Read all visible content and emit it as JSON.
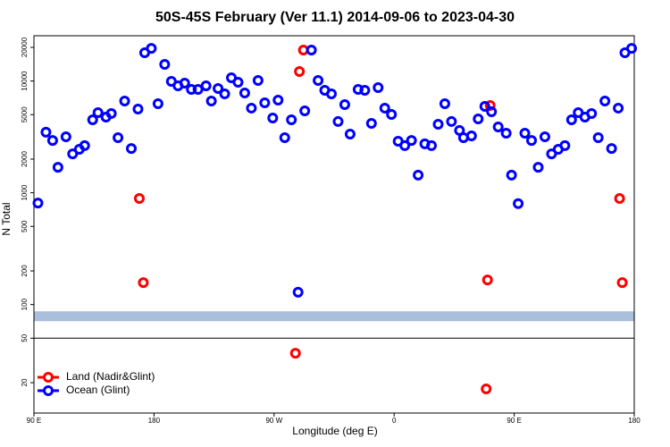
{
  "chart_data": {
    "type": "scatter",
    "title": "50S-45S February (Ver 11.1)   2014-09-06 to 2023-04-30",
    "x_label": "Longitude (deg E)",
    "y_label": "N Total",
    "log_y": true,
    "legend": "lower left",
    "xlim": [
      90,
      540
    ],
    "xticks": [
      {
        "value": 90,
        "label": "90 E"
      },
      180,
      {
        "value": 270,
        "label": "90 W"
      },
      {
        "value": 360,
        "label": "0"
      },
      {
        "value": 450,
        "label": "90 E"
      },
      {
        "value": 540,
        "label": "180"
      }
    ],
    "ylim": [
      10.7,
      25400
    ],
    "yticks": [
      20,
      50,
      100,
      200,
      500,
      1000,
      2000,
      5000,
      10000,
      20000
    ],
    "hline": 50,
    "band": [
      71,
      87
    ],
    "band_color": "#a9bfdc",
    "series": [
      {
        "name": "Land (Nadir&Glint)",
        "color": "#ff0000",
        "x": [
          169,
          172,
          286,
          289,
          292,
          429,
          430,
          432,
          529,
          531
        ],
        "values": [
          890,
          157,
          36.7,
          12160,
          18900,
          17.6,
          166,
          6040,
          890,
          157
        ]
      },
      {
        "name": "Ocean (Glint)",
        "color": "#0000ff",
        "x": [
          93,
          99,
          104,
          108,
          114,
          119,
          124,
          128,
          134,
          138,
          144,
          148,
          153,
          158,
          163,
          168,
          173,
          178,
          183,
          188,
          193,
          198,
          203,
          208,
          213,
          219,
          223,
          228,
          233,
          238,
          243,
          248,
          253,
          258,
          263,
          269,
          273,
          278,
          283,
          288,
          293,
          298,
          303,
          308,
          313,
          318,
          323,
          327,
          333,
          338,
          343,
          348,
          353,
          358,
          363,
          368,
          373,
          378,
          383,
          388,
          393,
          398,
          403,
          409,
          412,
          418,
          423,
          428,
          433,
          438,
          444,
          448,
          453,
          458,
          463,
          468,
          473,
          478,
          483,
          488,
          493,
          498,
          503,
          508,
          513,
          518,
          523,
          528,
          533,
          538
        ],
        "values": [
          810,
          3480,
          2940,
          1690,
          3170,
          2230,
          2450,
          2640,
          4500,
          5210,
          4750,
          5120,
          3110,
          6620,
          2490,
          5610,
          17900,
          19600,
          6270,
          14100,
          9930,
          9060,
          9570,
          8410,
          8410,
          9060,
          6620,
          8570,
          7670,
          10690,
          9750,
          7820,
          5720,
          10120,
          6380,
          4670,
          6750,
          3110,
          4500,
          129,
          5410,
          18920,
          10120,
          8260,
          7670,
          4340,
          6150,
          3350,
          8410,
          8260,
          4180,
          8730,
          5720,
          5020,
          2890,
          2640,
          2940,
          1440,
          2740,
          2640,
          4100,
          6270,
          4340,
          3610,
          3110,
          3230,
          4580,
          5930,
          5310,
          3880,
          3410,
          1440,
          800,
          3410,
          2940,
          1690,
          3170,
          2230,
          2450,
          2640,
          4500,
          5210,
          4750,
          5120,
          3110,
          6620,
          2490,
          5720,
          17900,
          19600
        ]
      }
    ]
  }
}
